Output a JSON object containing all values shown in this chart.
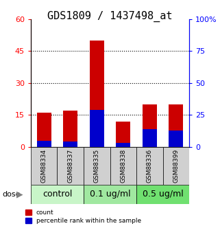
{
  "title": "GDS1809 / 1437498_at",
  "samples": [
    "GSM88334",
    "GSM88337",
    "GSM88335",
    "GSM88338",
    "GSM88336",
    "GSM88399"
  ],
  "group_info": [
    [
      0,
      2,
      "control",
      "#c8f5c8"
    ],
    [
      2,
      4,
      "0.1 ug/ml",
      "#a0e8a0"
    ],
    [
      4,
      6,
      "0.5 ug/ml",
      "#70e070"
    ]
  ],
  "count_values": [
    16,
    17,
    50,
    12,
    20,
    20
  ],
  "percentile_values": [
    5,
    4,
    29,
    3,
    14,
    13
  ],
  "bar_color_red": "#cc0000",
  "bar_color_blue": "#0000cc",
  "ylim_left": [
    0,
    60
  ],
  "ylim_right": [
    0,
    100
  ],
  "yticks_left": [
    0,
    15,
    30,
    45,
    60
  ],
  "yticks_right": [
    0,
    25,
    50,
    75,
    100
  ],
  "ytick_right_labels": [
    "0",
    "25",
    "50",
    "75",
    "100%"
  ],
  "bar_width": 0.55,
  "title_fontsize": 11,
  "tick_fontsize": 8,
  "group_label_fontsize": 9,
  "legend_fontsize": 6.5,
  "sample_fontsize": 6.5,
  "dotted_lines": [
    15,
    30,
    45
  ]
}
